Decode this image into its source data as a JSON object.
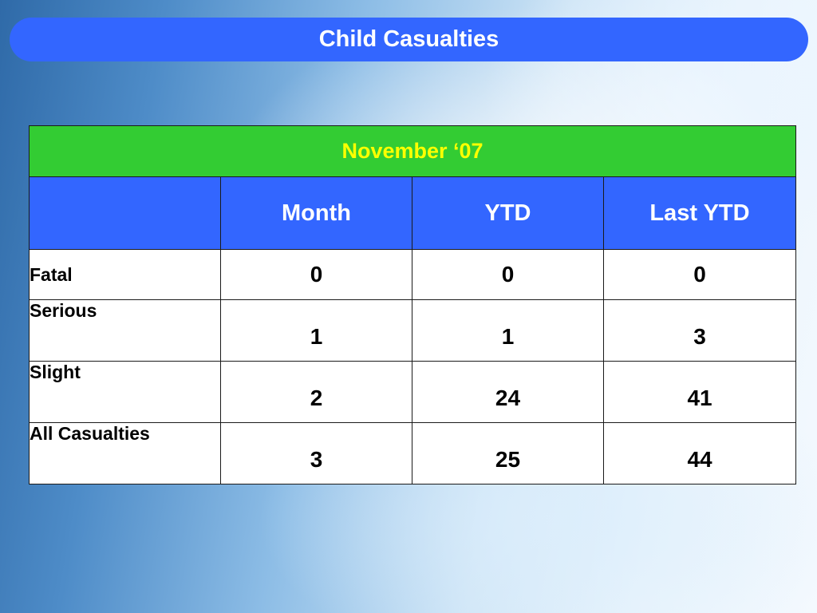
{
  "slide": {
    "title": "Child Casualties"
  },
  "table": {
    "period": "November ‘07",
    "columns": [
      "",
      "Month",
      "YTD",
      "Last YTD"
    ],
    "rows": [
      {
        "label": "Fatal",
        "month": "0",
        "ytd": "0",
        "last_ytd": "0"
      },
      {
        "label": "Serious",
        "month": "1",
        "ytd": "1",
        "last_ytd": "3"
      },
      {
        "label": "Slight",
        "month": "2",
        "ytd": "24",
        "last_ytd": "41"
      },
      {
        "label": "All Casualties",
        "month": "3",
        "ytd": "25",
        "last_ytd": "44"
      }
    ]
  },
  "colors": {
    "title_bar": "#3366ff",
    "period_header_bg": "#33cc33",
    "period_header_text": "#ffff00",
    "column_header_bg": "#3366ff"
  }
}
